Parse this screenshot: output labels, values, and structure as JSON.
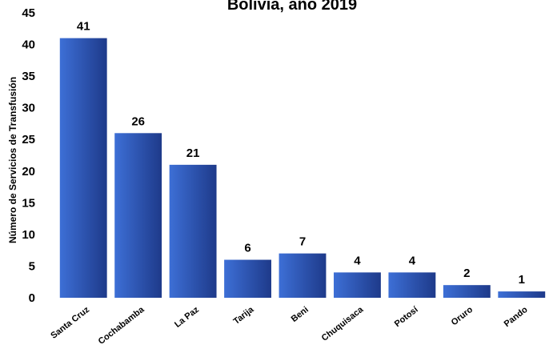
{
  "chart_data": {
    "type": "bar",
    "title": "Bolivia, año 2019",
    "xlabel": "",
    "ylabel": "Número de Servicios de Transfusión",
    "categories": [
      "Santa Cruz",
      "Cochabamba",
      "La Paz",
      "Tarija",
      "Beni",
      "Chuquisaca",
      "Potosí",
      "Oruro",
      "Pando"
    ],
    "values": [
      41,
      26,
      21,
      6,
      7,
      4,
      4,
      2,
      1
    ],
    "ylim": [
      0,
      45
    ],
    "yticks": [
      0,
      5,
      10,
      15,
      20,
      25,
      30,
      35,
      40,
      45
    ],
    "grid": false,
    "legend": "none",
    "bar_color_light": "#3d6fd6",
    "bar_color_dark": "#1e3a8a"
  }
}
